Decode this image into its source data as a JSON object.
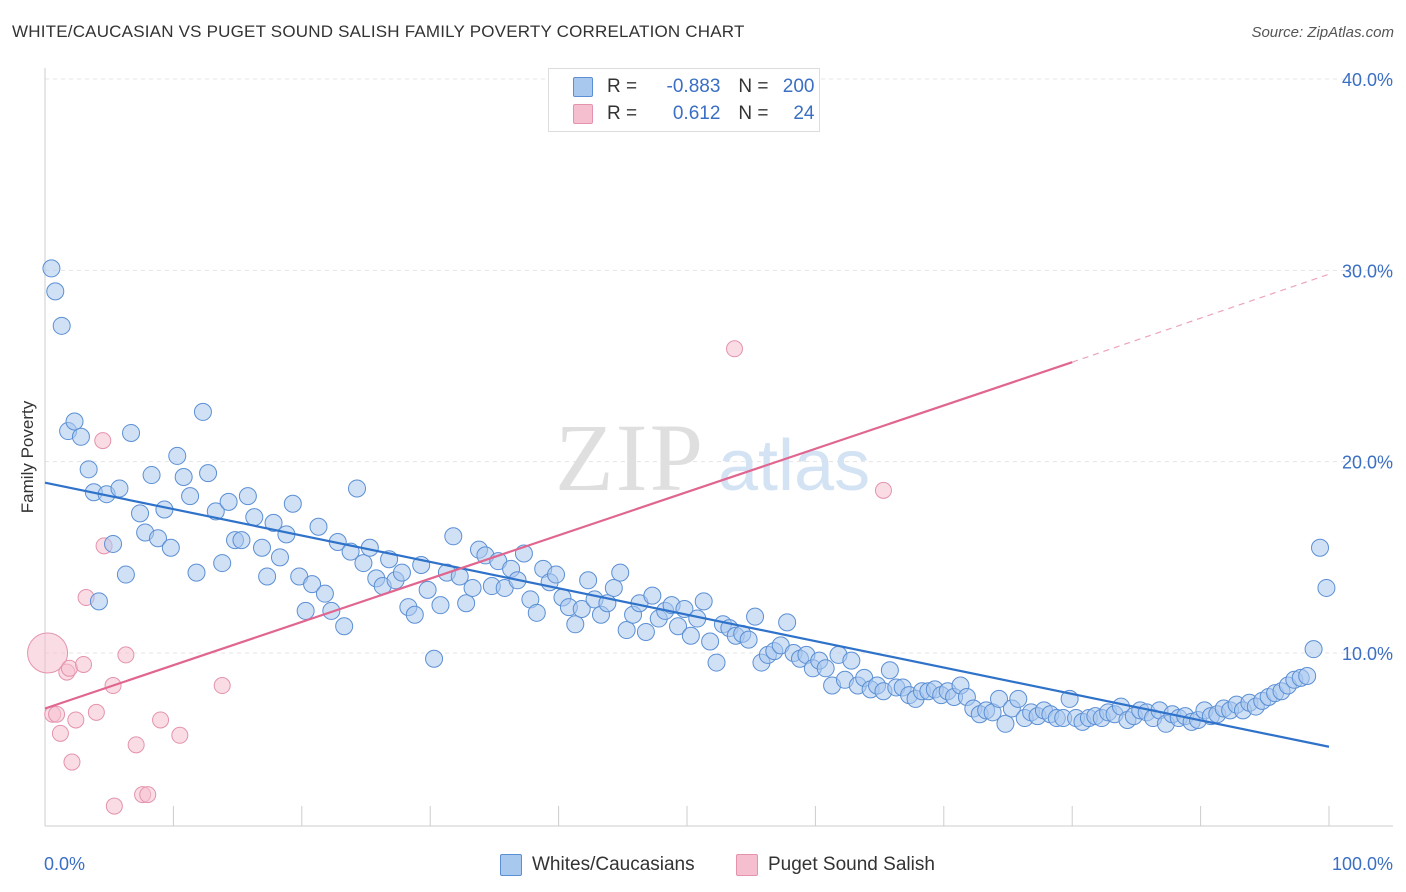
{
  "title": "WHITE/CAUCASIAN VS PUGET SOUND SALISH FAMILY POVERTY CORRELATION CHART",
  "source": "Source: ZipAtlas.com",
  "legend": {
    "r_label": "R =",
    "n_label": "N =",
    "series": [
      {
        "r": "-0.883",
        "n": "200"
      },
      {
        "r": "0.612",
        "n": "24"
      }
    ]
  },
  "chart_data": {
    "type": "scatter",
    "title": "WHITE/CAUCASIAN VS PUGET SOUND SALISH FAMILY POVERTY CORRELATION CHART",
    "xlabel": "",
    "ylabel": "Family Poverty",
    "xlim": [
      0,
      100
    ],
    "ylim": [
      0,
      42
    ],
    "x_tick_labels": [
      "0.0%",
      "100.0%"
    ],
    "y_ticks": [
      10,
      20,
      30,
      40
    ],
    "y_tick_labels": [
      "10.0%",
      "20.0%",
      "30.0%",
      "40.0%"
    ],
    "grid": true,
    "legend_position": "top-center",
    "watermark": "ZIPatlas",
    "colors": {
      "blue": "#a9c8ee",
      "blue_edge": "#5b8fd4",
      "blue_line": "#2f72c9",
      "pink": "#f5bfd0",
      "pink_edge": "#e493ad",
      "pink_line": "#e0668f"
    },
    "series": [
      {
        "name": "Whites/Caucasians",
        "color": "blue",
        "trend": {
          "x0": 0,
          "y0": 18.9,
          "x1": 100,
          "y1": 5.1
        },
        "points": [
          [
            0.5,
            30.1
          ],
          [
            0.8,
            28.9
          ],
          [
            1.3,
            27.1
          ],
          [
            1.8,
            21.6
          ],
          [
            2.3,
            22.1
          ],
          [
            2.8,
            21.3
          ],
          [
            3.4,
            19.6
          ],
          [
            3.8,
            18.4
          ],
          [
            4.2,
            12.7
          ],
          [
            4.8,
            18.3
          ],
          [
            5.3,
            15.7
          ],
          [
            5.8,
            18.6
          ],
          [
            6.3,
            14.1
          ],
          [
            6.7,
            21.5
          ],
          [
            7.4,
            17.3
          ],
          [
            7.8,
            16.3
          ],
          [
            8.3,
            19.3
          ],
          [
            8.8,
            16.0
          ],
          [
            9.3,
            17.5
          ],
          [
            9.8,
            15.5
          ],
          [
            10.3,
            20.3
          ],
          [
            10.8,
            19.2
          ],
          [
            11.3,
            18.2
          ],
          [
            11.8,
            14.2
          ],
          [
            12.3,
            22.6
          ],
          [
            12.7,
            19.4
          ],
          [
            13.3,
            17.4
          ],
          [
            13.8,
            14.7
          ],
          [
            14.3,
            17.9
          ],
          [
            14.8,
            15.9
          ],
          [
            15.3,
            15.9
          ],
          [
            15.8,
            18.2
          ],
          [
            16.3,
            17.1
          ],
          [
            16.9,
            15.5
          ],
          [
            17.3,
            14.0
          ],
          [
            17.8,
            16.8
          ],
          [
            18.3,
            15.0
          ],
          [
            18.8,
            16.2
          ],
          [
            19.3,
            17.8
          ],
          [
            19.8,
            14.0
          ],
          [
            20.3,
            12.2
          ],
          [
            20.8,
            13.6
          ],
          [
            21.3,
            16.6
          ],
          [
            21.8,
            13.1
          ],
          [
            22.3,
            12.2
          ],
          [
            22.8,
            15.8
          ],
          [
            23.3,
            11.4
          ],
          [
            23.8,
            15.3
          ],
          [
            24.3,
            18.6
          ],
          [
            24.8,
            14.7
          ],
          [
            25.3,
            15.5
          ],
          [
            25.8,
            13.9
          ],
          [
            26.3,
            13.5
          ],
          [
            26.8,
            14.9
          ],
          [
            27.3,
            13.8
          ],
          [
            27.8,
            14.2
          ],
          [
            28.3,
            12.4
          ],
          [
            28.8,
            12.0
          ],
          [
            29.3,
            14.6
          ],
          [
            29.8,
            13.3
          ],
          [
            30.3,
            9.7
          ],
          [
            30.8,
            12.5
          ],
          [
            31.3,
            14.2
          ],
          [
            31.8,
            16.1
          ],
          [
            32.3,
            14.0
          ],
          [
            32.8,
            12.6
          ],
          [
            33.3,
            13.4
          ],
          [
            33.8,
            15.4
          ],
          [
            34.3,
            15.1
          ],
          [
            34.8,
            13.5
          ],
          [
            35.3,
            14.8
          ],
          [
            35.8,
            13.4
          ],
          [
            36.3,
            14.4
          ],
          [
            36.8,
            13.8
          ],
          [
            37.3,
            15.2
          ],
          [
            37.8,
            12.8
          ],
          [
            38.3,
            12.1
          ],
          [
            38.8,
            14.4
          ],
          [
            39.3,
            13.7
          ],
          [
            39.8,
            14.1
          ],
          [
            40.3,
            12.9
          ],
          [
            40.8,
            12.4
          ],
          [
            41.3,
            11.5
          ],
          [
            41.8,
            12.3
          ],
          [
            42.3,
            13.8
          ],
          [
            42.8,
            12.8
          ],
          [
            43.3,
            12.0
          ],
          [
            43.8,
            12.6
          ],
          [
            44.3,
            13.4
          ],
          [
            44.8,
            14.2
          ],
          [
            45.3,
            11.2
          ],
          [
            45.8,
            12.0
          ],
          [
            46.3,
            12.6
          ],
          [
            46.8,
            11.1
          ],
          [
            47.3,
            13.0
          ],
          [
            47.8,
            11.8
          ],
          [
            48.3,
            12.2
          ],
          [
            48.8,
            12.5
          ],
          [
            49.3,
            11.4
          ],
          [
            49.8,
            12.3
          ],
          [
            50.3,
            10.9
          ],
          [
            50.8,
            11.8
          ],
          [
            51.3,
            12.7
          ],
          [
            51.8,
            10.6
          ],
          [
            52.3,
            9.5
          ],
          [
            52.8,
            11.5
          ],
          [
            53.3,
            11.3
          ],
          [
            53.8,
            10.9
          ],
          [
            54.3,
            11.0
          ],
          [
            54.8,
            10.7
          ],
          [
            55.3,
            11.9
          ],
          [
            55.8,
            9.5
          ],
          [
            56.3,
            9.9
          ],
          [
            56.8,
            10.1
          ],
          [
            57.3,
            10.4
          ],
          [
            57.8,
            11.6
          ],
          [
            58.3,
            10.0
          ],
          [
            58.8,
            9.7
          ],
          [
            59.3,
            9.9
          ],
          [
            59.8,
            9.2
          ],
          [
            60.3,
            9.6
          ],
          [
            60.8,
            9.2
          ],
          [
            61.3,
            8.3
          ],
          [
            61.8,
            9.9
          ],
          [
            62.3,
            8.6
          ],
          [
            62.8,
            9.6
          ],
          [
            63.3,
            8.3
          ],
          [
            63.8,
            8.7
          ],
          [
            64.3,
            8.1
          ],
          [
            64.8,
            8.3
          ],
          [
            65.3,
            8.0
          ],
          [
            65.8,
            9.1
          ],
          [
            66.3,
            8.2
          ],
          [
            66.8,
            8.2
          ],
          [
            67.3,
            7.8
          ],
          [
            67.8,
            7.6
          ],
          [
            68.3,
            8.0
          ],
          [
            68.8,
            8.0
          ],
          [
            69.3,
            8.1
          ],
          [
            69.8,
            7.8
          ],
          [
            70.3,
            8.0
          ],
          [
            70.8,
            7.7
          ],
          [
            71.3,
            8.3
          ],
          [
            71.8,
            7.7
          ],
          [
            72.3,
            7.1
          ],
          [
            72.8,
            6.8
          ],
          [
            73.3,
            7.0
          ],
          [
            73.8,
            6.9
          ],
          [
            74.3,
            7.6
          ],
          [
            74.8,
            6.3
          ],
          [
            75.3,
            7.1
          ],
          [
            75.8,
            7.6
          ],
          [
            76.3,
            6.6
          ],
          [
            76.8,
            6.9
          ],
          [
            77.3,
            6.7
          ],
          [
            77.8,
            7.0
          ],
          [
            78.3,
            6.8
          ],
          [
            78.8,
            6.6
          ],
          [
            79.3,
            6.6
          ],
          [
            79.8,
            7.6
          ],
          [
            80.3,
            6.6
          ],
          [
            80.8,
            6.4
          ],
          [
            81.3,
            6.6
          ],
          [
            81.8,
            6.7
          ],
          [
            82.3,
            6.6
          ],
          [
            82.8,
            6.9
          ],
          [
            83.3,
            6.8
          ],
          [
            83.8,
            7.2
          ],
          [
            84.3,
            6.5
          ],
          [
            84.8,
            6.7
          ],
          [
            85.3,
            7.0
          ],
          [
            85.8,
            6.9
          ],
          [
            86.3,
            6.6
          ],
          [
            86.8,
            7.0
          ],
          [
            87.3,
            6.3
          ],
          [
            87.8,
            6.8
          ],
          [
            88.3,
            6.6
          ],
          [
            88.8,
            6.7
          ],
          [
            89.3,
            6.4
          ],
          [
            89.8,
            6.5
          ],
          [
            90.3,
            7.0
          ],
          [
            90.8,
            6.7
          ],
          [
            91.3,
            6.8
          ],
          [
            91.8,
            7.1
          ],
          [
            92.3,
            7.0
          ],
          [
            92.8,
            7.3
          ],
          [
            93.3,
            7.0
          ],
          [
            93.8,
            7.4
          ],
          [
            94.3,
            7.2
          ],
          [
            94.8,
            7.5
          ],
          [
            95.3,
            7.7
          ],
          [
            95.8,
            7.9
          ],
          [
            96.3,
            8.0
          ],
          [
            96.8,
            8.3
          ],
          [
            97.3,
            8.6
          ],
          [
            97.8,
            8.7
          ],
          [
            98.3,
            8.8
          ],
          [
            98.8,
            10.2
          ],
          [
            99.3,
            15.5
          ],
          [
            99.8,
            13.4
          ]
        ]
      },
      {
        "name": "Puget Sound Salish",
        "color": "pink",
        "trend": {
          "x0": 0,
          "y0": 7.1,
          "x1": 80,
          "y1": 25.2,
          "dash_to_x": 100,
          "dash_to_y": 29.8
        },
        "points": [
          [
            0.2,
            10.0
          ],
          [
            0.6,
            6.8
          ],
          [
            0.9,
            6.8
          ],
          [
            1.2,
            5.8
          ],
          [
            1.7,
            9.0
          ],
          [
            1.9,
            9.2
          ],
          [
            2.1,
            4.3
          ],
          [
            2.4,
            6.5
          ],
          [
            3.0,
            9.4
          ],
          [
            3.2,
            12.9
          ],
          [
            4.0,
            6.9
          ],
          [
            4.5,
            21.1
          ],
          [
            4.6,
            15.6
          ],
          [
            5.3,
            8.3
          ],
          [
            5.4,
            2.0
          ],
          [
            6.3,
            9.9
          ],
          [
            7.1,
            5.2
          ],
          [
            7.6,
            2.6
          ],
          [
            8.0,
            2.6
          ],
          [
            9.0,
            6.5
          ],
          [
            10.5,
            5.7
          ],
          [
            13.8,
            8.3
          ],
          [
            53.7,
            25.9
          ],
          [
            65.3,
            18.5
          ]
        ]
      }
    ]
  },
  "bottom_legend": [
    "Whites/Caucasians",
    "Puget Sound Salish"
  ],
  "watermark": {
    "zip": "ZIP",
    "atlas": "atlas"
  }
}
